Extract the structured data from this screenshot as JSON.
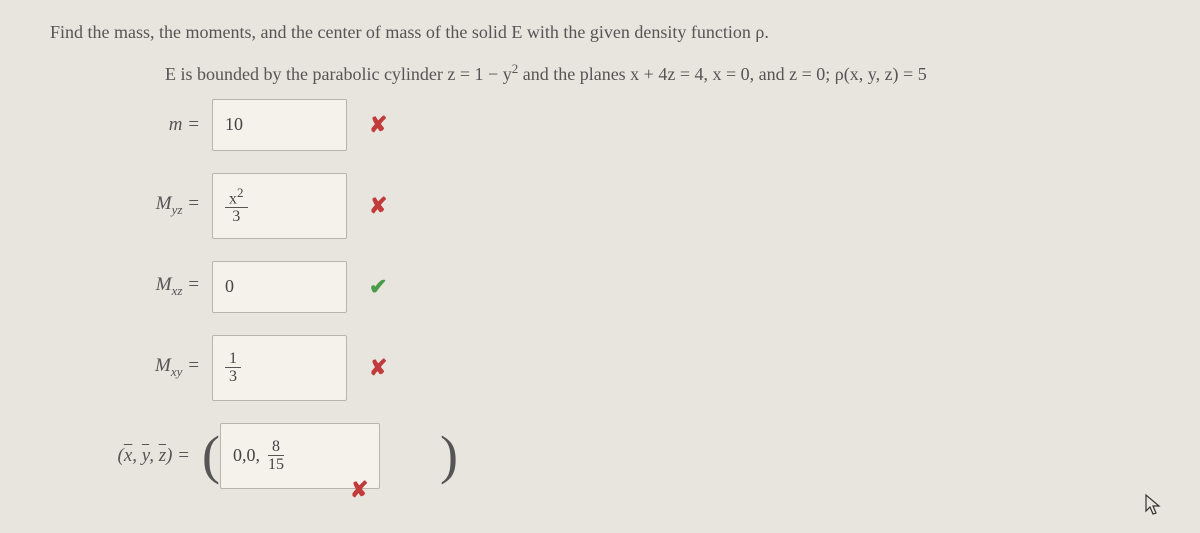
{
  "problem": {
    "line1": "Find the mass, the moments, and the center of mass of the solid E with the given density function ρ.",
    "line2_pre": "E is bounded by the parabolic cylinder z = 1 − y",
    "line2_exp": "2",
    "line2_post": " and the planes x + 4z = 4, x = 0, and z = 0; ρ(x, y, z) = 5"
  },
  "rows": {
    "m": {
      "label": "m  =",
      "value": "10",
      "status": "wrong"
    },
    "myz": {
      "label_html": "M<span class=\"sub\">yz</span>  =",
      "frac_num": "x",
      "frac_num_sup": "2",
      "frac_den": "3",
      "status": "wrong"
    },
    "mxz": {
      "label_html": "M<span class=\"sub\">xz</span>  =",
      "value": "0",
      "status": "correct"
    },
    "mxy": {
      "label_html": "M<span class=\"sub\">xy</span>  =",
      "frac_num": "1",
      "frac_den": "3",
      "status": "wrong"
    },
    "center": {
      "label_html": "(<span class=\"overline italic\">x</span>, <span class=\"overline italic\">y</span>, <span class=\"overline italic\">z</span>)  =",
      "value_pre": "0,0,",
      "frac_num": "8",
      "frac_den": "15",
      "status": "wrong"
    }
  },
  "marks": {
    "wrong": "✘",
    "correct": "✔"
  }
}
